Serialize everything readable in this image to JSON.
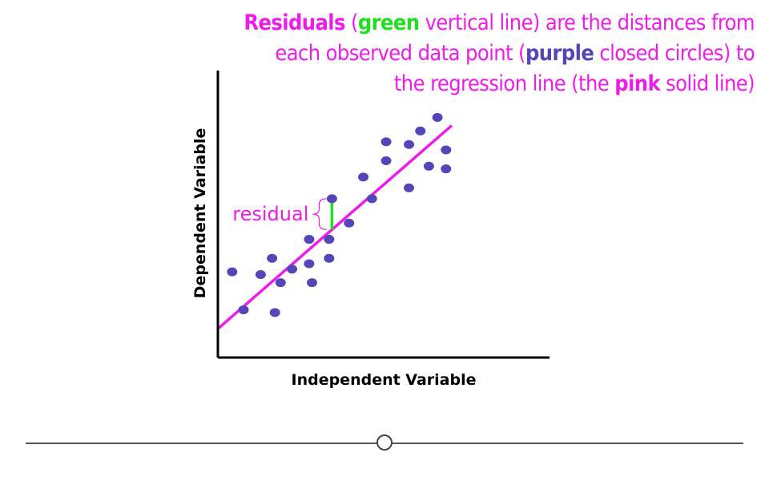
{
  "caption": {
    "w1": "Residuals",
    "w2": " (",
    "w3": "green",
    "w4": " vertical line) are the distances from each observed data point (",
    "w5": "purple",
    "w6": " closed circles) to the regression line (the ",
    "w7": "pink",
    "w8": " solid line)"
  },
  "colors": {
    "pink": "#ee1ce8",
    "green": "#22dd22",
    "purple": "#5346b6",
    "axis": "#000000"
  },
  "chart_data": {
    "type": "scatter",
    "title": "",
    "xlabel": "Independent Variable",
    "ylabel": "Dependent Variable",
    "xlim": [
      0,
      10
    ],
    "ylim": [
      0,
      10
    ],
    "grid": false,
    "points": [
      {
        "x": 0.5,
        "y": 2.6
      },
      {
        "x": 0.9,
        "y": 1.2
      },
      {
        "x": 1.5,
        "y": 2.5
      },
      {
        "x": 1.9,
        "y": 3.1
      },
      {
        "x": 2.0,
        "y": 1.1
      },
      {
        "x": 2.2,
        "y": 2.2
      },
      {
        "x": 2.6,
        "y": 2.7
      },
      {
        "x": 3.2,
        "y": 2.9
      },
      {
        "x": 3.2,
        "y": 3.8
      },
      {
        "x": 3.3,
        "y": 2.2
      },
      {
        "x": 3.9,
        "y": 3.1
      },
      {
        "x": 3.9,
        "y": 3.8
      },
      {
        "x": 4.0,
        "y": 5.3
      },
      {
        "x": 4.6,
        "y": 4.4
      },
      {
        "x": 5.1,
        "y": 6.1
      },
      {
        "x": 5.4,
        "y": 5.3
      },
      {
        "x": 5.9,
        "y": 6.7
      },
      {
        "x": 5.9,
        "y": 7.4
      },
      {
        "x": 6.7,
        "y": 5.7
      },
      {
        "x": 6.7,
        "y": 7.3
      },
      {
        "x": 7.1,
        "y": 7.8
      },
      {
        "x": 7.4,
        "y": 6.5
      },
      {
        "x": 7.7,
        "y": 8.3
      },
      {
        "x": 8.0,
        "y": 7.1
      },
      {
        "x": 8.0,
        "y": 6.4
      }
    ],
    "regression_line": {
      "x": [
        0,
        8.2
      ],
      "y": [
        0.5,
        8.0
      ]
    },
    "residual": {
      "x": 4.0,
      "y_observed": 5.3,
      "y_fitted": 4.16,
      "label": "residual"
    }
  },
  "slider": {
    "value": 0.5
  }
}
